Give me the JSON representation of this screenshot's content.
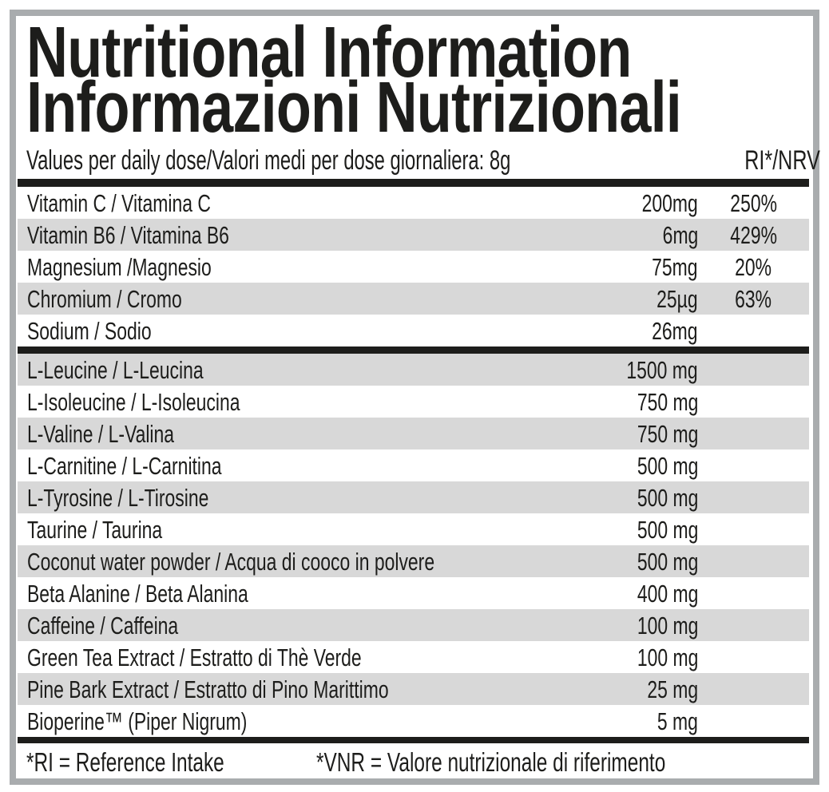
{
  "label": {
    "title_en": "Nutritional Information",
    "title_it": "Informazioni Nutrizionali",
    "serving_line": "Values per daily dose/Valori medi per dose giornaliera: 8g",
    "ri_header": "RI*/NRV",
    "section1": [
      {
        "name": "Vitamin C / Vitamina C",
        "amount": "200mg",
        "ri": "250%"
      },
      {
        "name": "Vitamin B6 / Vitamina B6",
        "amount": "6mg",
        "ri": "429%"
      },
      {
        "name": "Magnesium /Magnesio",
        "amount": "75mg",
        "ri": "20%"
      },
      {
        "name": "Chromium / Cromo",
        "amount": "25µg",
        "ri": "63%"
      },
      {
        "name": "Sodium / Sodio",
        "amount": "26mg",
        "ri": ""
      }
    ],
    "section2": [
      {
        "name": "L-Leucine / L-Leucina",
        "amount": "1500 mg"
      },
      {
        "name": "L-Isoleucine / L-Isoleucina",
        "amount": "750 mg"
      },
      {
        "name": "L-Valine / L-Valina",
        "amount": "750 mg"
      },
      {
        "name": "L-Carnitine / L-Carnitina",
        "amount": "500 mg"
      },
      {
        "name": "L-Tyrosine / L-Tirosine",
        "amount": "500 mg"
      },
      {
        "name": "Taurine / Taurina",
        "amount": "500 mg"
      },
      {
        "name": "Coconut water powder / Acqua di cooco in polvere",
        "amount": "500 mg"
      },
      {
        "name": "Beta Alanine / Beta Alanina",
        "amount": "400 mg"
      },
      {
        "name": "Caffeine / Caffeina",
        "amount": "100 mg"
      },
      {
        "name": "Green Tea Extract / Estratto di Thè Verde",
        "amount": "100 mg"
      },
      {
        "name": "Pine Bark Extract / Estratto di Pino Marittimo",
        "amount": "25 mg"
      },
      {
        "name": "Bioperine™ (Piper Nigrum)",
        "amount": "5 mg"
      }
    ],
    "footnote_en": "*RI = Reference Intake",
    "footnote_it": "*VNR = Valore nutrizionale di riferimento",
    "colors": {
      "ink": "#1d1d1b",
      "row_shade": "#d8d8d8",
      "frame": "#a9acae"
    }
  }
}
